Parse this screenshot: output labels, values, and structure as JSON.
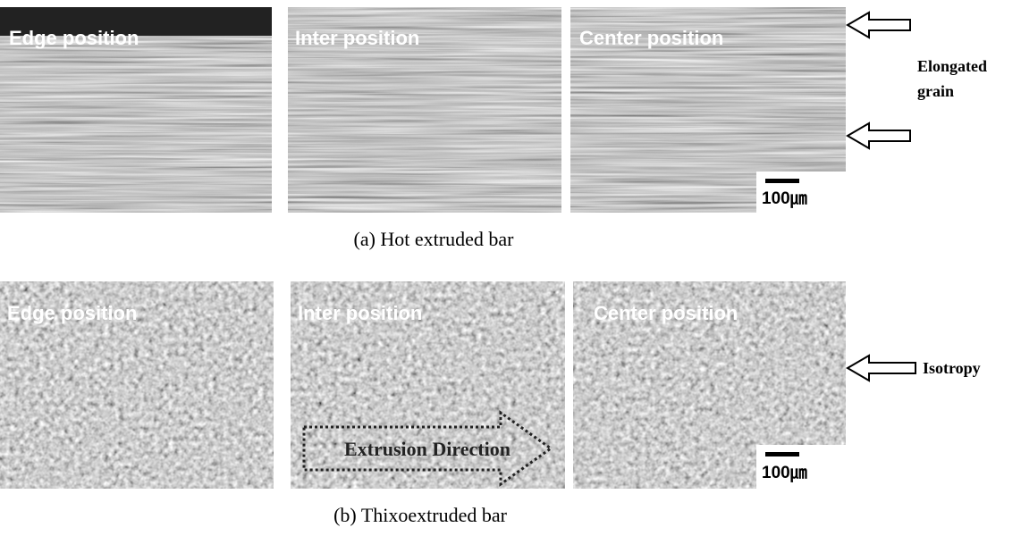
{
  "figure": {
    "rows": [
      {
        "panels": [
          {
            "label": "Edge position"
          },
          {
            "label": "Inter position"
          },
          {
            "label": "Center position"
          }
        ],
        "scale_bar": "100㎛",
        "annotation": [
          "Elongated",
          "grain"
        ],
        "caption": "(a) Hot extruded bar"
      },
      {
        "panels": [
          {
            "label": "Edge position"
          },
          {
            "label": "Inter position"
          },
          {
            "label": "Center position"
          }
        ],
        "scale_bar": "100㎛",
        "overlay": "Extrusion Direction",
        "annotation": [
          "Isotropy"
        ],
        "caption": "(b) Thixoextruded bar"
      }
    ]
  }
}
